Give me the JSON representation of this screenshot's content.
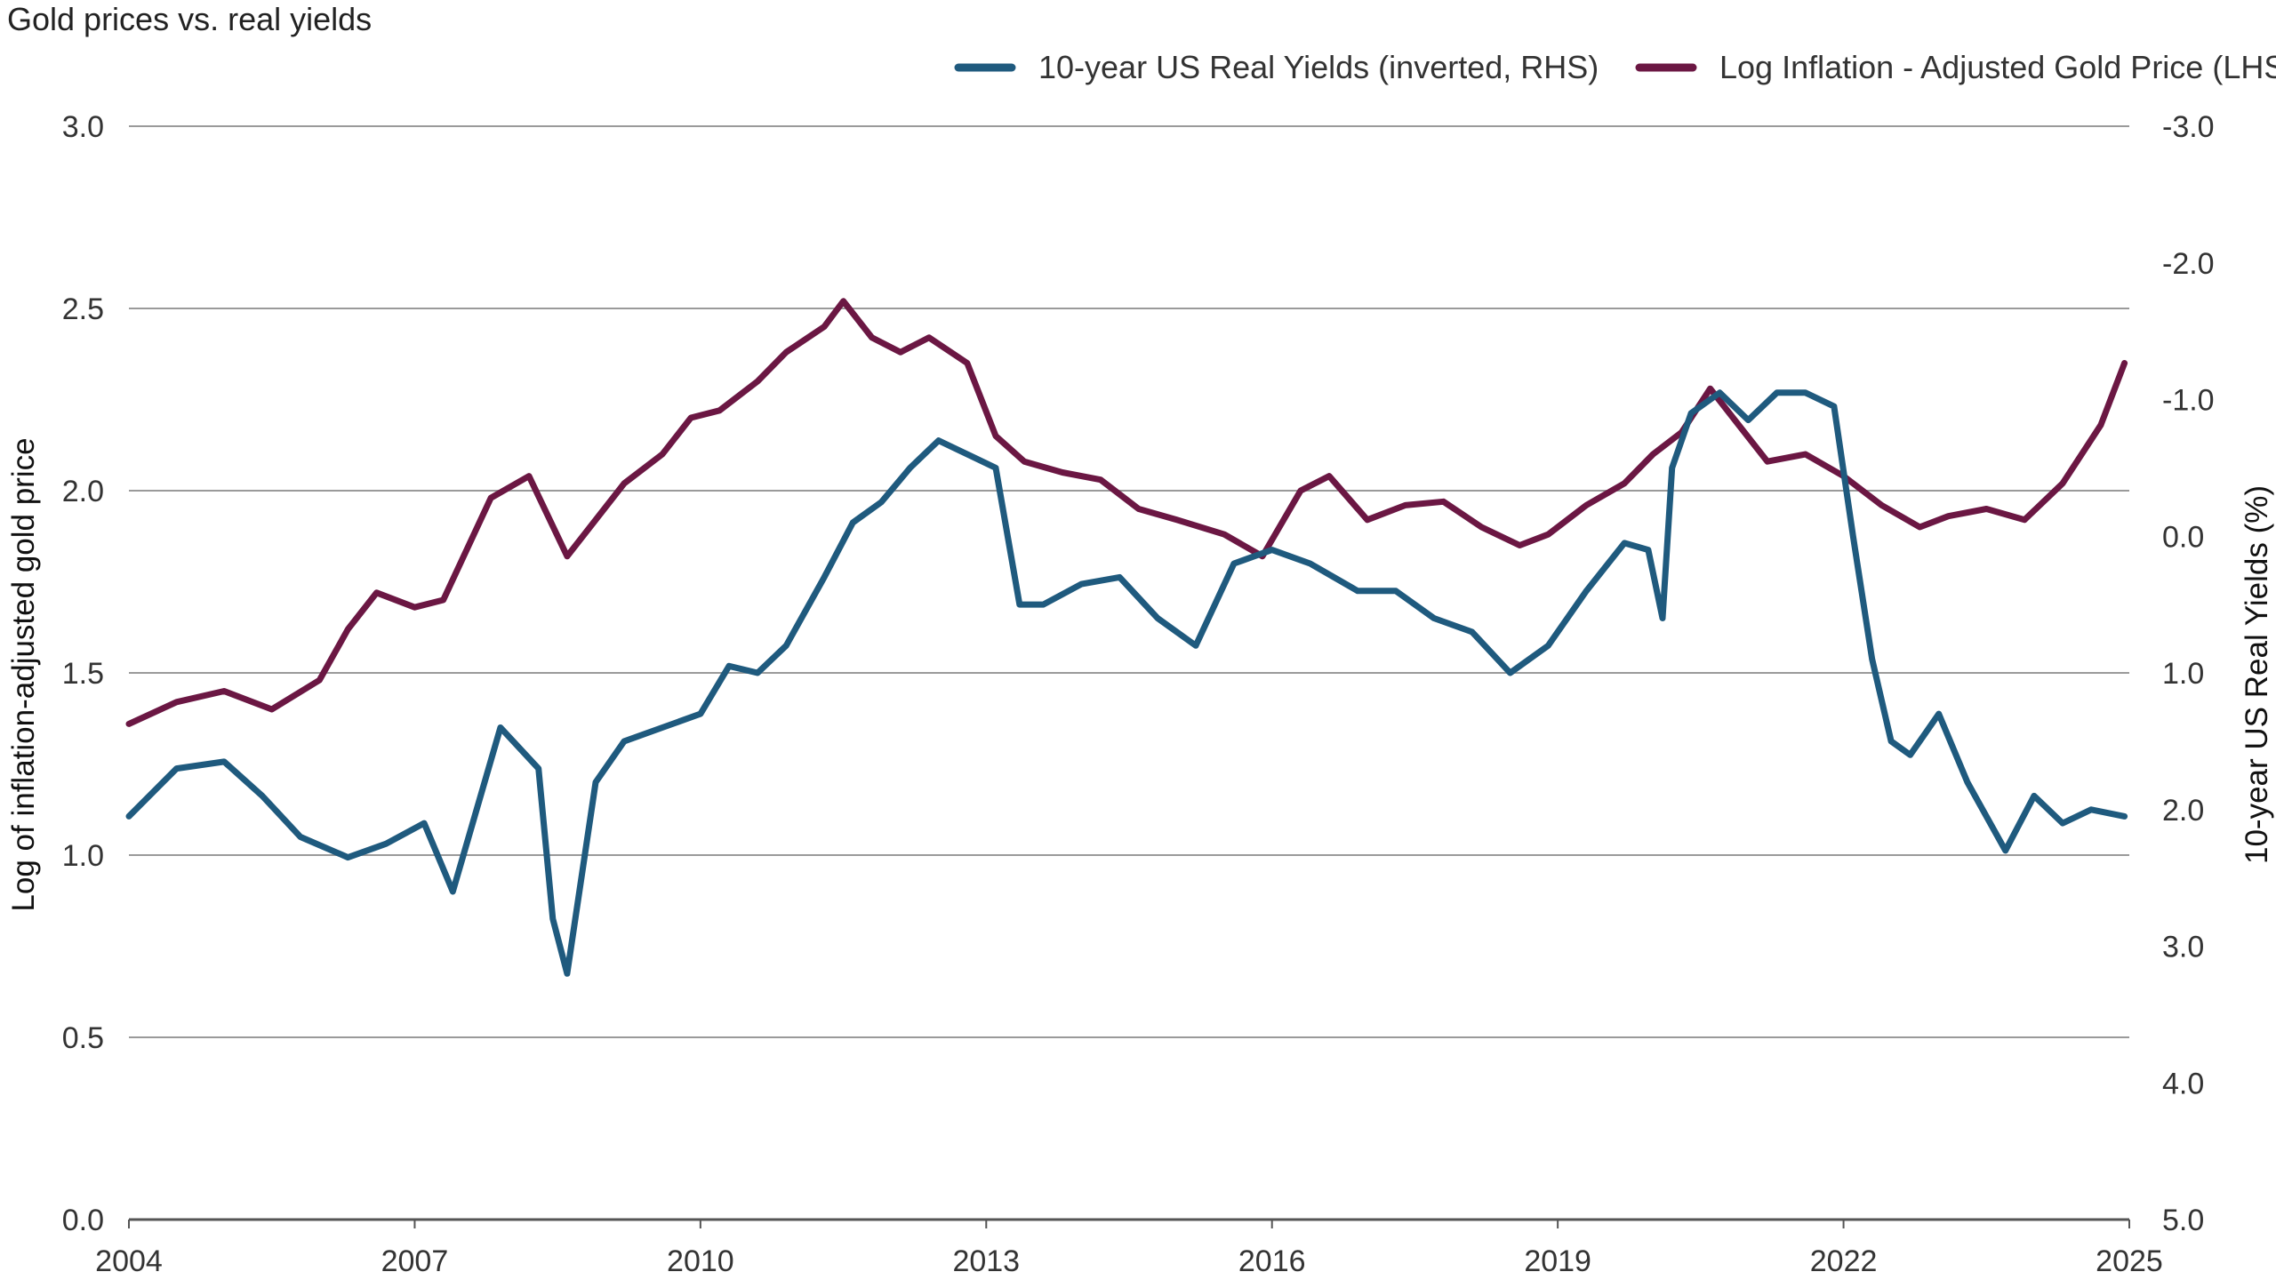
{
  "chart_data": {
    "type": "line",
    "title": "Gold prices vs. real yields",
    "ylabel_left": "Log of inflation-adjusted gold price",
    "ylabel_right": "10-year US Real Yields (%)",
    "xlim": [
      2004,
      2025
    ],
    "ylim_left": [
      0.0,
      3.0
    ],
    "ylim_right_inverted": [
      5.0,
      -3.0
    ],
    "x_ticks": [
      "2004",
      "2007",
      "2010",
      "2013",
      "2016",
      "2019",
      "2022",
      "2025"
    ],
    "y_ticks_left": [
      "0.0",
      "0.5",
      "1.0",
      "1.5",
      "2.0",
      "2.5",
      "3.0"
    ],
    "y_ticks_right": [
      "5.0",
      "4.0",
      "3.0",
      "2.0",
      "1.0",
      "0.0",
      "-1.0",
      "-2.0",
      "-3.0"
    ],
    "gridlines": true,
    "legend_position": "top-right",
    "legend": [
      {
        "series": "yields",
        "label": "10-year US Real Yields (inverted, RHS)",
        "color": "#1f5a7e"
      },
      {
        "series": "gold",
        "label": "Log Inflation - Adjusted Gold Price (LHS)",
        "color": "#6b1743"
      }
    ],
    "series": [
      {
        "id": "gold",
        "name": "Log Inflation - Adjusted Gold Price (LHS)",
        "axis": "left",
        "color": "#6b1743",
        "x": [
          2004.0,
          2004.5,
          2005.0,
          2005.5,
          2006.0,
          2006.3,
          2006.6,
          2007.0,
          2007.3,
          2007.8,
          2008.2,
          2008.6,
          2008.9,
          2009.2,
          2009.6,
          2009.9,
          2010.2,
          2010.6,
          2010.9,
          2011.3,
          2011.5,
          2011.8,
          2012.1,
          2012.4,
          2012.8,
          2013.1,
          2013.4,
          2013.8,
          2014.2,
          2014.6,
          2015.0,
          2015.5,
          2015.9,
          2016.3,
          2016.6,
          2017.0,
          2017.4,
          2017.8,
          2018.2,
          2018.6,
          2018.9,
          2019.3,
          2019.7,
          2020.0,
          2020.3,
          2020.6,
          2020.9,
          2021.2,
          2021.6,
          2022.0,
          2022.4,
          2022.8,
          2023.1,
          2023.5,
          2023.9,
          2024.3,
          2024.7,
          2024.95
        ],
        "y": [
          1.36,
          1.42,
          1.45,
          1.4,
          1.48,
          1.62,
          1.72,
          1.68,
          1.7,
          1.98,
          2.04,
          1.82,
          1.92,
          2.02,
          2.1,
          2.2,
          2.22,
          2.3,
          2.38,
          2.45,
          2.52,
          2.42,
          2.38,
          2.42,
          2.35,
          2.15,
          2.08,
          2.05,
          2.03,
          1.95,
          1.92,
          1.88,
          1.82,
          2.0,
          2.04,
          1.92,
          1.96,
          1.97,
          1.9,
          1.85,
          1.88,
          1.96,
          2.02,
          2.1,
          2.16,
          2.28,
          2.18,
          2.08,
          2.1,
          2.04,
          1.96,
          1.9,
          1.93,
          1.95,
          1.92,
          2.02,
          2.18,
          2.35
        ]
      },
      {
        "id": "yields",
        "name": "10-year US Real Yields (inverted, RHS)",
        "axis": "right",
        "color": "#1f5a7e",
        "x": [
          2004.0,
          2004.5,
          2005.0,
          2005.4,
          2005.8,
          2006.3,
          2006.7,
          2007.1,
          2007.4,
          2007.9,
          2008.3,
          2008.45,
          2008.6,
          2008.9,
          2009.2,
          2009.6,
          2010.0,
          2010.3,
          2010.6,
          2010.9,
          2011.3,
          2011.6,
          2011.9,
          2012.2,
          2012.5,
          2012.8,
          2013.1,
          2013.35,
          2013.6,
          2014.0,
          2014.4,
          2014.8,
          2015.2,
          2015.6,
          2016.0,
          2016.4,
          2016.9,
          2017.3,
          2017.7,
          2018.1,
          2018.5,
          2018.9,
          2019.3,
          2019.7,
          2019.95,
          2020.1,
          2020.2,
          2020.4,
          2020.7,
          2021.0,
          2021.3,
          2021.6,
          2021.9,
          2022.1,
          2022.3,
          2022.5,
          2022.7,
          2023.0,
          2023.3,
          2023.7,
          2024.0,
          2024.3,
          2024.6,
          2024.95
        ],
        "y": [
          2.05,
          1.7,
          1.65,
          1.9,
          2.2,
          2.35,
          2.25,
          2.1,
          2.6,
          1.4,
          1.7,
          2.8,
          3.2,
          1.8,
          1.5,
          1.4,
          1.3,
          0.95,
          1.0,
          0.8,
          0.3,
          -0.1,
          -0.25,
          -0.5,
          -0.7,
          -0.6,
          -0.5,
          0.5,
          0.5,
          0.35,
          0.3,
          0.6,
          0.8,
          0.2,
          0.1,
          0.2,
          0.4,
          0.4,
          0.6,
          0.7,
          1.0,
          0.8,
          0.4,
          0.05,
          0.1,
          0.6,
          -0.5,
          -0.9,
          -1.05,
          -0.85,
          -1.05,
          -1.05,
          -0.95,
          0.0,
          0.9,
          1.5,
          1.6,
          1.3,
          1.8,
          2.3,
          1.9,
          2.1,
          2.0,
          2.05
        ]
      }
    ]
  }
}
